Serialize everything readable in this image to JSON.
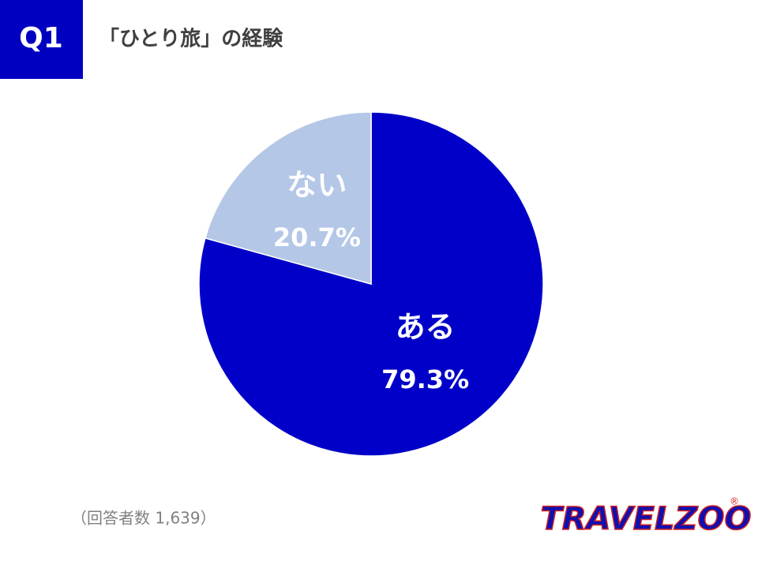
{
  "chart_data": {
    "type": "pie",
    "badge": "Q1",
    "title": "「ひとり旅」の経験",
    "categories": [
      "ある",
      "ない"
    ],
    "values": [
      79.3,
      20.7
    ],
    "value_labels": [
      "79.3%",
      "20.7%"
    ],
    "colors": [
      "#0000c8",
      "#b4c7e7"
    ],
    "note": "（回答者数 1,639）",
    "logo": "TRAVELZOO",
    "logo_mark": "®"
  }
}
